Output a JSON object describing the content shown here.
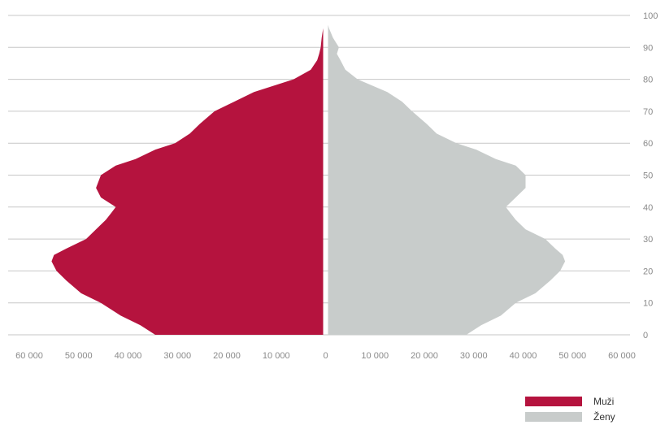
{
  "chart_data": {
    "type": "area",
    "orientation": "population-pyramid",
    "ages": [
      0,
      3,
      6,
      10,
      13,
      17,
      20,
      23,
      25,
      27,
      30,
      33,
      36,
      38,
      40,
      43,
      46,
      50,
      53,
      55,
      58,
      60,
      63,
      66,
      70,
      73,
      76,
      80,
      83,
      86,
      88,
      90,
      93,
      96,
      97
    ],
    "series": [
      {
        "name": "Muži",
        "color": "#b5133e",
        "side": "left",
        "values": [
          34000,
          37000,
          41000,
          45000,
          49000,
          52000,
          54000,
          55000,
          54500,
          52000,
          48000,
          46000,
          44000,
          43000,
          42000,
          45000,
          46000,
          45000,
          42000,
          38000,
          34000,
          30000,
          27000,
          25000,
          22000,
          18000,
          14000,
          6000,
          2500,
          1200,
          800,
          500,
          300,
          0,
          0
        ]
      },
      {
        "name": "Ženy",
        "color": "#c8cccb",
        "side": "right",
        "values": [
          28000,
          31000,
          35000,
          38000,
          42000,
          45000,
          47000,
          48000,
          47500,
          46000,
          44000,
          40000,
          38000,
          37000,
          36000,
          38000,
          40000,
          40000,
          38000,
          34000,
          30000,
          26000,
          22000,
          20000,
          17000,
          15000,
          12000,
          6000,
          3500,
          2500,
          1800,
          2200,
          1000,
          200,
          0
        ]
      }
    ],
    "x_ticks": [
      "60 000",
      "50 000",
      "40 000",
      "30 000",
      "20 000",
      "10 000",
      "0",
      "10 000",
      "20 000",
      "30 000",
      "40 000",
      "50 000",
      "60 000"
    ],
    "y_ticks": [
      "0",
      "10",
      "20",
      "30",
      "40",
      "50",
      "60",
      "70",
      "80",
      "90",
      "100"
    ],
    "xlim": [
      -60000,
      60000
    ],
    "ylim": [
      0,
      100
    ],
    "grid": true,
    "legend": {
      "placement": "bottom-right",
      "entries": [
        "Muži",
        "Ženy"
      ]
    }
  },
  "legend": {
    "male_label": "Muži",
    "female_label": "Ženy"
  }
}
